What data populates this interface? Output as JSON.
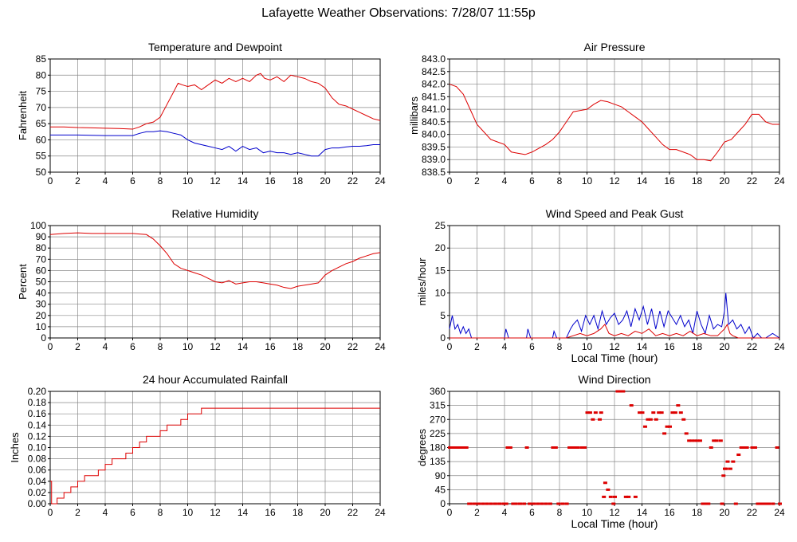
{
  "page_title": "Lafayette Weather Observations: 7/28/07 11:55p",
  "colors": {
    "red": "#dd0000",
    "blue": "#0000cc",
    "grid": "#888888"
  },
  "chart_data": [
    {
      "id": "temp",
      "type": "line",
      "title": "Temperature and Dewpoint",
      "ylabel": "Fahrenheit",
      "xlabel": "",
      "xlim": [
        0,
        24
      ],
      "ylim": [
        50,
        85
      ],
      "xticks": [
        0,
        2,
        4,
        6,
        8,
        10,
        12,
        14,
        16,
        18,
        20,
        22,
        24
      ],
      "yticks": [
        50,
        55,
        60,
        65,
        70,
        75,
        80,
        85
      ],
      "ytick_decimals": 0,
      "grid": true,
      "series": [
        {
          "color": "#dd0000",
          "x": [
            0,
            1,
            2,
            3,
            4,
            5,
            6,
            6.5,
            7,
            7.5,
            8,
            8.5,
            9,
            9.3,
            9.6,
            10,
            10.5,
            11,
            11.5,
            12,
            12.5,
            13,
            13.5,
            14,
            14.5,
            15,
            15.3,
            15.6,
            16,
            16.5,
            17,
            17.5,
            18,
            18.5,
            19,
            19.5,
            20,
            20.5,
            21,
            21.5,
            22,
            22.5,
            23,
            23.5,
            24
          ],
          "y": [
            64,
            64,
            63.8,
            63.7,
            63.6,
            63.5,
            63.3,
            64,
            65,
            65.5,
            67,
            71,
            75,
            77.5,
            77,
            76.5,
            77,
            75.5,
            77,
            78.5,
            77.5,
            79,
            78,
            79,
            78,
            80,
            80.5,
            79,
            78.5,
            79.5,
            78,
            80,
            79.5,
            79,
            78,
            77.5,
            76,
            73,
            71,
            70.5,
            69.5,
            68.5,
            67.5,
            66.5,
            66
          ]
        },
        {
          "color": "#0000cc",
          "x": [
            0,
            1,
            2,
            3,
            4,
            5,
            6,
            6.5,
            7,
            7.5,
            8,
            8.5,
            9,
            9.5,
            10,
            10.5,
            11,
            11.5,
            12,
            12.5,
            13,
            13.5,
            14,
            14.5,
            15,
            15.5,
            16,
            16.5,
            17,
            17.5,
            18,
            18.5,
            19,
            19.5,
            20,
            20.5,
            21,
            21.5,
            22,
            22.5,
            23,
            23.5,
            24
          ],
          "y": [
            61.5,
            61.5,
            61.5,
            61.4,
            61.3,
            61.3,
            61.3,
            62,
            62.5,
            62.5,
            62.8,
            62.5,
            62,
            61.5,
            60,
            59,
            58.5,
            58,
            57.5,
            57,
            58,
            56.5,
            58,
            57,
            57.5,
            56,
            56.5,
            56,
            56,
            55.5,
            56,
            55.5,
            55,
            55,
            57,
            57.5,
            57.5,
            57.8,
            58,
            58,
            58.2,
            58.5,
            58.5
          ]
        }
      ]
    },
    {
      "id": "pressure",
      "type": "line",
      "title": "Air Pressure",
      "ylabel": "millibars",
      "xlabel": "",
      "xlim": [
        0,
        24
      ],
      "ylim": [
        838.5,
        843.0
      ],
      "xticks": [
        0,
        2,
        4,
        6,
        8,
        10,
        12,
        14,
        16,
        18,
        20,
        22,
        24
      ],
      "yticks": [
        838.5,
        839.0,
        839.5,
        840.0,
        840.5,
        841.0,
        841.5,
        842.0,
        842.5,
        843.0
      ],
      "ytick_decimals": 1,
      "grid": true,
      "series": [
        {
          "color": "#dd0000",
          "x": [
            0,
            0.5,
            1,
            1.5,
            2,
            2.5,
            3,
            3.5,
            4,
            4.5,
            5,
            5.5,
            6,
            6.5,
            7,
            7.5,
            8,
            8.5,
            9,
            9.5,
            10,
            10.5,
            11,
            11.5,
            12,
            12.5,
            13,
            13.5,
            14,
            14.5,
            15,
            15.5,
            16,
            16.5,
            17,
            17.5,
            18,
            18.5,
            19,
            19.5,
            20,
            20.5,
            21,
            21.5,
            22,
            22.5,
            23,
            23.5,
            24
          ],
          "y": [
            842.0,
            841.9,
            841.6,
            841.0,
            840.4,
            840.1,
            839.8,
            839.7,
            839.6,
            839.3,
            839.25,
            839.2,
            839.3,
            839.45,
            839.6,
            839.8,
            840.1,
            840.5,
            840.9,
            840.95,
            841.0,
            841.2,
            841.35,
            841.3,
            841.2,
            841.1,
            840.9,
            840.7,
            840.5,
            840.2,
            839.9,
            839.6,
            839.4,
            839.4,
            839.3,
            839.2,
            839.0,
            839.0,
            838.95,
            839.3,
            839.7,
            839.8,
            840.1,
            840.4,
            840.8,
            840.8,
            840.5,
            840.4,
            840.4
          ]
        }
      ]
    },
    {
      "id": "humidity",
      "type": "line",
      "title": "Relative Humidity",
      "ylabel": "Percent",
      "xlabel": "",
      "xlim": [
        0,
        24
      ],
      "ylim": [
        0,
        100
      ],
      "xticks": [
        0,
        2,
        4,
        6,
        8,
        10,
        12,
        14,
        16,
        18,
        20,
        22,
        24
      ],
      "yticks": [
        0,
        10,
        20,
        30,
        40,
        50,
        60,
        70,
        80,
        90,
        100
      ],
      "ytick_decimals": 0,
      "grid": true,
      "series": [
        {
          "color": "#dd0000",
          "x": [
            0,
            1,
            2,
            3,
            4,
            5,
            6,
            6.5,
            7,
            7.5,
            8,
            8.5,
            9,
            9.5,
            10,
            10.5,
            11,
            11.5,
            12,
            12.5,
            13,
            13.5,
            14,
            14.5,
            15,
            15.5,
            16,
            16.5,
            17,
            17.5,
            18,
            18.5,
            19,
            19.5,
            20,
            20.5,
            21,
            21.5,
            22,
            22.5,
            23,
            23.5,
            24
          ],
          "y": [
            92,
            93,
            93.5,
            93,
            93,
            93,
            93,
            92.5,
            92,
            88,
            82,
            75,
            66,
            62,
            60,
            58,
            56,
            53,
            50,
            49,
            51,
            48,
            49,
            50,
            50,
            49,
            48,
            47,
            45,
            44,
            46,
            47,
            48,
            49,
            56,
            60,
            63,
            66,
            68,
            71,
            73,
            75,
            76
          ]
        }
      ]
    },
    {
      "id": "wind-speed",
      "type": "line",
      "title": "Wind Speed and Peak Gust",
      "ylabel": "miles/hour",
      "xlabel": "Local Time (hour)",
      "xlim": [
        0,
        24
      ],
      "ylim": [
        0,
        25
      ],
      "xticks": [
        0,
        2,
        4,
        6,
        8,
        10,
        12,
        14,
        16,
        18,
        20,
        22,
        24
      ],
      "yticks": [
        0,
        5,
        10,
        15,
        20,
        25
      ],
      "ytick_decimals": 0,
      "grid": true,
      "series": [
        {
          "color": "#0000cc",
          "x": [
            0,
            0.2,
            0.4,
            0.6,
            0.8,
            1.0,
            1.2,
            1.4,
            1.6,
            2,
            3,
            4,
            4.1,
            4.3,
            4.5,
            5,
            5.6,
            5.7,
            5.9,
            6.5,
            7.5,
            7.6,
            7.8,
            8,
            8.5,
            8.8,
            9,
            9.3,
            9.6,
            9.9,
            10.2,
            10.5,
            10.8,
            11.1,
            11.4,
            11.7,
            12,
            12.3,
            12.6,
            12.9,
            13.2,
            13.5,
            13.8,
            14.1,
            14.4,
            14.7,
            15,
            15.3,
            15.6,
            15.9,
            16.2,
            16.5,
            16.8,
            17.1,
            17.4,
            17.7,
            18,
            18.3,
            18.6,
            18.9,
            19.2,
            19.5,
            19.8,
            20,
            20.1,
            20.3,
            20.6,
            20.9,
            21.2,
            21.5,
            21.8,
            22.1,
            22.4,
            22.7,
            23,
            23.5,
            24
          ],
          "y": [
            2,
            5,
            2,
            3,
            1,
            2.5,
            1,
            2,
            0,
            0,
            0,
            0,
            2,
            0,
            0,
            0,
            0,
            2,
            0,
            0,
            0,
            1.5,
            0,
            0,
            0,
            2,
            3,
            4,
            1.5,
            5,
            3,
            5,
            2,
            6,
            3,
            4.5,
            5.5,
            3,
            4,
            6,
            2.5,
            6.5,
            4,
            7,
            3,
            6.5,
            2,
            6,
            2.5,
            6,
            4.5,
            3,
            5,
            2.5,
            4,
            1,
            6,
            3,
            1,
            5,
            2,
            3,
            2.5,
            6,
            10,
            3,
            4,
            2,
            3,
            1,
            2.5,
            0,
            1,
            0,
            0,
            1,
            0
          ]
        },
        {
          "color": "#dd0000",
          "x": [
            0,
            8.5,
            9,
            9.5,
            10,
            10.5,
            11,
            11.3,
            11.6,
            12,
            12.5,
            13,
            13.5,
            14,
            14.5,
            15,
            15.5,
            16,
            16.5,
            17,
            17.5,
            18,
            18.5,
            19,
            19.5,
            20,
            20.2,
            20.4,
            20.6,
            21,
            22,
            24
          ],
          "y": [
            0,
            0,
            0.5,
            1,
            0.5,
            1,
            2,
            3,
            1,
            0.5,
            1,
            0.5,
            1.5,
            1,
            2,
            0.5,
            1,
            0.5,
            1,
            0.5,
            1.5,
            0.5,
            1,
            0.5,
            0.5,
            2,
            3,
            1,
            0.5,
            0,
            0,
            0
          ]
        }
      ]
    },
    {
      "id": "rainfall",
      "type": "line",
      "title": "24 hour Accumulated Rainfall",
      "ylabel": "Inches",
      "xlabel": "",
      "xlim": [
        0,
        24
      ],
      "ylim": [
        0,
        0.2
      ],
      "xticks": [
        0,
        2,
        4,
        6,
        8,
        10,
        12,
        14,
        16,
        18,
        20,
        22,
        24
      ],
      "yticks": [
        0,
        0.02,
        0.04,
        0.06,
        0.08,
        0.1,
        0.12,
        0.14,
        0.16,
        0.18,
        0.2
      ],
      "ytick_decimals": 2,
      "grid": true,
      "series": [
        {
          "color": "#dd0000",
          "step": true,
          "x": [
            0,
            0.1,
            0.2,
            0.5,
            1.0,
            1.5,
            2.0,
            2.5,
            3.0,
            3.5,
            4.0,
            4.5,
            5.0,
            5.5,
            6.0,
            6.5,
            7.0,
            7.5,
            8.0,
            8.5,
            9.0,
            9.5,
            10.0,
            10.5,
            11.0,
            11.5,
            12.0,
            24
          ],
          "y": [
            0.04,
            0.0,
            0.0,
            0.01,
            0.02,
            0.03,
            0.04,
            0.05,
            0.05,
            0.06,
            0.07,
            0.08,
            0.08,
            0.09,
            0.1,
            0.11,
            0.12,
            0.12,
            0.13,
            0.14,
            0.14,
            0.15,
            0.16,
            0.16,
            0.17,
            0.17,
            0.17,
            0.17
          ]
        }
      ]
    },
    {
      "id": "wind-dir",
      "type": "scatter",
      "title": "Wind Direction",
      "ylabel": "degrees",
      "xlabel": "Local Time (hour)",
      "xlim": [
        0,
        24
      ],
      "ylim": [
        0,
        360
      ],
      "xticks": [
        0,
        2,
        4,
        6,
        8,
        10,
        12,
        14,
        16,
        18,
        20,
        22,
        24
      ],
      "yticks": [
        0,
        45,
        90,
        135,
        180,
        225,
        270,
        315,
        360
      ],
      "ytick_decimals": 0,
      "grid": true,
      "series": [
        {
          "color": "#dd0000",
          "x": [
            0,
            0.2,
            0.4,
            0.6,
            0.8,
            1.0,
            1.2,
            1.4,
            1.5,
            1.8,
            2.1,
            2.4,
            2.7,
            3.0,
            3.3,
            3.6,
            3.9,
            4.1,
            4.2,
            4.4,
            4.6,
            4.8,
            5.1,
            5.4,
            5.6,
            5.8,
            6.1,
            6.4,
            6.7,
            7.0,
            7.3,
            7.5,
            7.7,
            7.9,
            8.2,
            8.5,
            8.7,
            8.9,
            9.1,
            9.3,
            9.6,
            9.8,
            10.0,
            10.2,
            10.4,
            10.6,
            10.9,
            11.0,
            11.2,
            11.3,
            11.5,
            11.7,
            11.9,
            12.0,
            12.2,
            12.4,
            12.6,
            12.8,
            13.0,
            13.2,
            13.5,
            13.8,
            14.0,
            14.2,
            14.4,
            14.6,
            14.8,
            15.0,
            15.2,
            15.4,
            15.6,
            15.8,
            16.0,
            16.2,
            16.4,
            16.6,
            16.8,
            17.0,
            17.2,
            17.4,
            17.6,
            17.8,
            18.0,
            18.2,
            18.4,
            18.6,
            18.8,
            19.0,
            19.2,
            19.4,
            19.7,
            19.8,
            19.9,
            20.0,
            20.1,
            20.2,
            20.4,
            20.6,
            20.8,
            21.0,
            21.2,
            21.4,
            21.6,
            22.0,
            22.2,
            22.4,
            22.6,
            22.8,
            23.0,
            23.2,
            23.5,
            23.8,
            24.0
          ],
          "y": [
            180,
            180,
            180,
            180,
            180,
            180,
            180,
            0,
            0,
            0,
            0,
            0,
            0,
            0,
            0,
            0,
            0,
            0,
            180,
            180,
            0,
            0,
            0,
            0,
            180,
            0,
            0,
            0,
            0,
            0,
            0,
            180,
            180,
            0,
            0,
            0,
            180,
            180,
            180,
            180,
            180,
            180,
            292,
            292,
            270,
            292,
            270,
            292,
            22,
            67,
            45,
            22,
            0,
            22,
            360,
            360,
            360,
            22,
            22,
            315,
            22,
            292,
            292,
            247,
            270,
            270,
            292,
            270,
            292,
            292,
            225,
            247,
            247,
            292,
            292,
            315,
            292,
            270,
            225,
            202,
            202,
            202,
            202,
            202,
            0,
            0,
            0,
            180,
            202,
            202,
            202,
            0,
            90,
            112,
            112,
            135,
            112,
            135,
            0,
            157,
            180,
            180,
            180,
            180,
            180,
            0,
            0,
            0,
            0,
            0,
            0,
            180,
            0
          ]
        }
      ]
    }
  ]
}
